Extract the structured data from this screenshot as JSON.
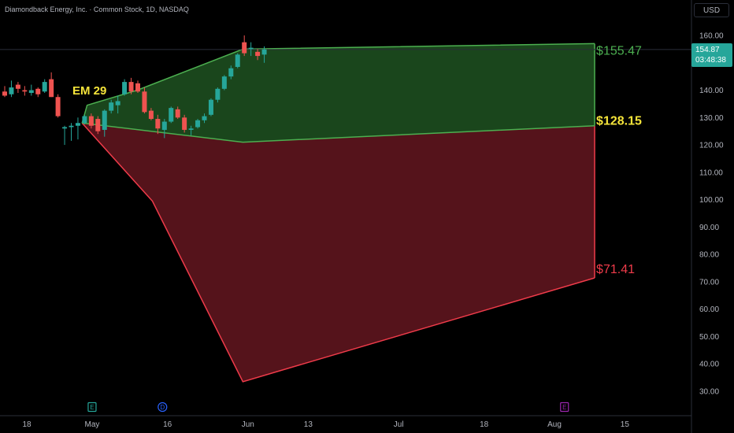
{
  "header": {
    "title": "Diamondback Energy, Inc. · Common Stock, 1D, NASDAQ",
    "currency": "USD"
  },
  "price_badge": {
    "price": "154.87",
    "countdown": "03:48:38"
  },
  "colors": {
    "up": "#26a69a",
    "down": "#ef5350",
    "green_line": "#4caf50",
    "green_fill": "#1b4a1e",
    "red_line": "#ef3b4a",
    "red_fill": "#5a141c",
    "em_label": "#f5e43a",
    "grid": "#2a2e39"
  },
  "markers": [
    {
      "letter": "E",
      "color": "#26a69a"
    },
    {
      "letter": "D",
      "color": "#2962ff"
    },
    {
      "letter": "E",
      "color": "#9c27b0"
    }
  ],
  "chart_data": {
    "type": "candlestick",
    "title": "Diamondback Energy, Inc. · Common Stock, 1D, NASDAQ",
    "y_unit": "USD",
    "ylim": [
      25,
      165
    ],
    "y_ticks": [
      "160.00",
      "150.00",
      "140.00",
      "130.00",
      "120.00",
      "110.00",
      "100.00",
      "90.00",
      "80.00",
      "70.00",
      "60.00",
      "50.00",
      "40.00",
      "30.00"
    ],
    "x_ticks": [
      "18",
      "May",
      "16",
      "Jun",
      "13",
      "Jul",
      "18",
      "Aug",
      "15"
    ],
    "last_price": 154.87,
    "annotations": {
      "em_label": "EM 29",
      "upper_label": "$155.47",
      "mid_label": "$128.15",
      "lower_label": "$71.41"
    },
    "candles": [
      {
        "open": 139.5,
        "high": 141.5,
        "low": 137.5,
        "close": 138.0
      },
      {
        "open": 138.5,
        "high": 143.5,
        "low": 137.5,
        "close": 141.0
      },
      {
        "open": 142.0,
        "high": 143.0,
        "low": 139.0,
        "close": 140.5
      },
      {
        "open": 140.0,
        "high": 141.5,
        "low": 138.0,
        "close": 139.5
      },
      {
        "open": 139.0,
        "high": 142.0,
        "low": 138.0,
        "close": 140.0
      },
      {
        "open": 140.5,
        "high": 141.0,
        "low": 137.5,
        "close": 138.5
      },
      {
        "open": 139.5,
        "high": 144.0,
        "low": 139.0,
        "close": 143.0
      },
      {
        "open": 144.0,
        "high": 146.5,
        "low": 137.5,
        "close": 137.5
      },
      {
        "open": 137.5,
        "high": 138.5,
        "low": 130.0,
        "close": 130.5
      },
      {
        "open": 126.0,
        "high": 127.0,
        "low": 120.0,
        "close": 126.5
      },
      {
        "open": 126.5,
        "high": 128.0,
        "low": 121.5,
        "close": 127.0
      },
      {
        "open": 127.0,
        "high": 130.0,
        "low": 122.0,
        "close": 128.0
      },
      {
        "open": 128.0,
        "high": 131.0,
        "low": 127.5,
        "close": 130.5
      },
      {
        "open": 130.5,
        "high": 131.5,
        "low": 126.0,
        "close": 127.0
      },
      {
        "open": 129.5,
        "high": 130.5,
        "low": 124.0,
        "close": 125.0
      },
      {
        "open": 125.5,
        "high": 133.0,
        "low": 123.0,
        "close": 132.5
      },
      {
        "open": 132.5,
        "high": 136.5,
        "low": 131.5,
        "close": 135.5
      },
      {
        "open": 134.5,
        "high": 138.0,
        "low": 131.5,
        "close": 136.0
      },
      {
        "open": 138.5,
        "high": 144.0,
        "low": 138.0,
        "close": 143.0
      },
      {
        "open": 143.0,
        "high": 144.5,
        "low": 138.5,
        "close": 139.5
      },
      {
        "open": 142.5,
        "high": 143.5,
        "low": 139.0,
        "close": 139.5
      },
      {
        "open": 139.5,
        "high": 141.0,
        "low": 131.5,
        "close": 132.0
      },
      {
        "open": 132.5,
        "high": 133.5,
        "low": 129.0,
        "close": 129.5
      },
      {
        "open": 129.5,
        "high": 131.0,
        "low": 124.0,
        "close": 126.0
      },
      {
        "open": 125.5,
        "high": 129.5,
        "low": 122.5,
        "close": 128.5
      },
      {
        "open": 128.5,
        "high": 134.0,
        "low": 128.0,
        "close": 133.5
      },
      {
        "open": 133.0,
        "high": 134.0,
        "low": 129.5,
        "close": 130.0
      },
      {
        "open": 130.0,
        "high": 131.0,
        "low": 124.5,
        "close": 125.5
      },
      {
        "open": 125.5,
        "high": 127.0,
        "low": 123.5,
        "close": 126.0
      },
      {
        "open": 126.5,
        "high": 129.5,
        "low": 126.0,
        "close": 129.0
      },
      {
        "open": 129.0,
        "high": 131.5,
        "low": 128.0,
        "close": 130.5
      },
      {
        "open": 131.0,
        "high": 137.0,
        "low": 130.5,
        "close": 136.5
      },
      {
        "open": 136.5,
        "high": 141.0,
        "low": 135.5,
        "close": 140.5
      },
      {
        "open": 140.5,
        "high": 145.5,
        "low": 140.0,
        "close": 145.0
      },
      {
        "open": 145.0,
        "high": 149.0,
        "low": 144.0,
        "close": 148.0
      },
      {
        "open": 148.5,
        "high": 153.5,
        "low": 148.0,
        "close": 153.0
      },
      {
        "open": 157.5,
        "high": 160.0,
        "low": 152.5,
        "close": 153.5
      },
      {
        "open": 155.0,
        "high": 157.5,
        "low": 152.5,
        "close": 155.5
      },
      {
        "open": 154.0,
        "high": 155.0,
        "low": 151.0,
        "close": 152.5
      },
      {
        "open": 153.0,
        "high": 156.0,
        "low": 150.0,
        "close": 154.87
      }
    ],
    "upper_band": [
      {
        "date": "Apr 29",
        "value": 128.0
      },
      {
        "date": "Apr 30",
        "value": 134.5
      },
      {
        "date": "May 10",
        "value": 140.0
      },
      {
        "date": "May 31",
        "value": 155.0
      },
      {
        "date": "Aug 9",
        "value": 157.0
      }
    ],
    "mid_band": [
      {
        "date": "Apr 29",
        "value": 128.0
      },
      {
        "date": "May 31",
        "value": 121.0
      },
      {
        "date": "Aug 9",
        "value": 127.0
      }
    ],
    "lower_band": [
      {
        "date": "Apr 29",
        "value": 128.0
      },
      {
        "date": "May 13",
        "value": 99.5
      },
      {
        "date": "May 31",
        "value": 33.5
      },
      {
        "date": "Aug 9",
        "value": 71.41
      }
    ]
  }
}
